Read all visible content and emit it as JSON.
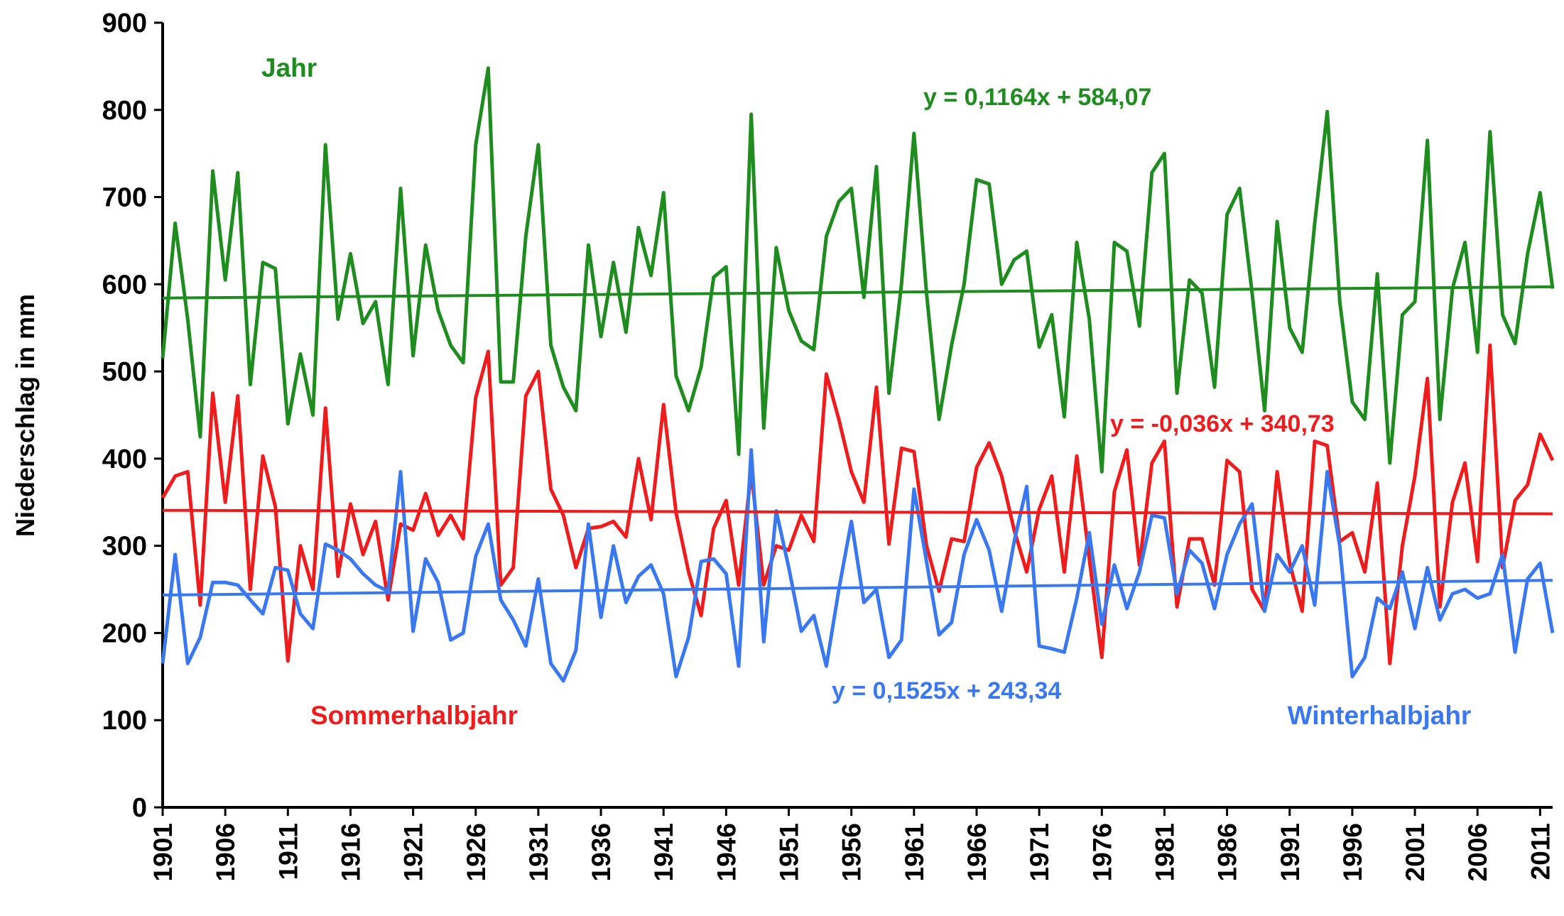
{
  "chart_data": {
    "type": "line",
    "y_label": "Niederschlag in mm",
    "x": [
      1901,
      1902,
      1903,
      1904,
      1905,
      1906,
      1907,
      1908,
      1909,
      1910,
      1911,
      1912,
      1913,
      1914,
      1915,
      1916,
      1917,
      1918,
      1919,
      1920,
      1921,
      1922,
      1923,
      1924,
      1925,
      1926,
      1927,
      1928,
      1929,
      1930,
      1931,
      1932,
      1933,
      1934,
      1935,
      1936,
      1937,
      1938,
      1939,
      1940,
      1941,
      1942,
      1943,
      1944,
      1945,
      1946,
      1947,
      1948,
      1949,
      1950,
      1951,
      1952,
      1953,
      1954,
      1955,
      1956,
      1957,
      1958,
      1959,
      1960,
      1961,
      1962,
      1963,
      1964,
      1965,
      1966,
      1967,
      1968,
      1969,
      1970,
      1971,
      1972,
      1973,
      1974,
      1975,
      1976,
      1977,
      1978,
      1979,
      1980,
      1981,
      1982,
      1983,
      1984,
      1985,
      1986,
      1987,
      1988,
      1989,
      1990,
      1991,
      1992,
      1993,
      1994,
      1995,
      1996,
      1997,
      1998,
      1999,
      2000,
      2001,
      2002,
      2003,
      2004,
      2005,
      2006,
      2007,
      2008,
      2009,
      2010,
      2011,
      2012
    ],
    "xlim": [
      1901,
      2012
    ],
    "xticks": [
      1901,
      1906,
      1911,
      1916,
      1921,
      1926,
      1931,
      1936,
      1941,
      1946,
      1951,
      1956,
      1961,
      1966,
      1971,
      1976,
      1981,
      1986,
      1991,
      1996,
      2001,
      2006,
      2011
    ],
    "ylim": [
      0,
      900
    ],
    "yticks": [
      0,
      100,
      200,
      300,
      400,
      500,
      600,
      700,
      800,
      900
    ],
    "series": [
      {
        "name": "Jahr",
        "color": "#1e8c1e",
        "trend": {
          "label": "y = 0,1164x + 584,07",
          "slope": 0.1164,
          "intercept": 584.07
        },
        "values": [
          515,
          670,
          560,
          425,
          730,
          605,
          728,
          485,
          625,
          618,
          440,
          520,
          450,
          760,
          560,
          635,
          555,
          580,
          485,
          710,
          518,
          645,
          570,
          530,
          510,
          760,
          848,
          488,
          488,
          655,
          760,
          530,
          482,
          455,
          645,
          540,
          625,
          545,
          665,
          610,
          705,
          495,
          455,
          505,
          608,
          620,
          405,
          795,
          435,
          642,
          570,
          535,
          525,
          655,
          695,
          710,
          585,
          735,
          475,
          600,
          773,
          590,
          445,
          530,
          600,
          720,
          715,
          600,
          628,
          638,
          528,
          565,
          448,
          648,
          560,
          385,
          648,
          638,
          552,
          728,
          750,
          475,
          605,
          590,
          482,
          680,
          710,
          590,
          455,
          672,
          550,
          522,
          670,
          798,
          580,
          465,
          445,
          612,
          395,
          565,
          580,
          765,
          445,
          595,
          648,
          522,
          775,
          565,
          532,
          635,
          705,
          595
        ]
      },
      {
        "name": "Sommerhalbjahr",
        "color": "#ee1c1c",
        "trend": {
          "label": "y = -0,036x + 340,73",
          "slope": -0.036,
          "intercept": 340.73
        },
        "values": [
          355,
          380,
          385,
          232,
          475,
          350,
          472,
          250,
          403,
          345,
          168,
          300,
          250,
          458,
          265,
          348,
          290,
          328,
          238,
          325,
          318,
          360,
          312,
          335,
          308,
          470,
          523,
          255,
          275,
          472,
          500,
          365,
          335,
          275,
          320,
          322,
          328,
          310,
          400,
          330,
          462,
          338,
          270,
          220,
          320,
          352,
          255,
          385,
          255,
          300,
          295,
          335,
          305,
          497,
          445,
          385,
          350,
          482,
          302,
          412,
          408,
          300,
          248,
          308,
          305,
          390,
          418,
          380,
          318,
          270,
          342,
          380,
          270,
          403,
          285,
          172,
          362,
          410,
          278,
          395,
          420,
          230,
          308,
          308,
          255,
          398,
          385,
          250,
          225,
          385,
          280,
          225,
          420,
          415,
          305,
          315,
          270,
          372,
          165,
          300,
          380,
          492,
          230,
          350,
          395,
          282,
          530,
          275,
          352,
          370,
          428,
          398
        ]
      },
      {
        "name": "Winterhalbjahr",
        "color": "#3a78f0",
        "trend": {
          "label": "y = 0,1525x + 243,34",
          "slope": 0.1525,
          "intercept": 243.34
        },
        "values": [
          165,
          290,
          165,
          195,
          258,
          258,
          255,
          238,
          222,
          275,
          272,
          222,
          205,
          302,
          295,
          285,
          268,
          255,
          248,
          385,
          202,
          285,
          258,
          192,
          200,
          288,
          325,
          238,
          215,
          185,
          262,
          165,
          145,
          180,
          325,
          218,
          300,
          235,
          265,
          278,
          245,
          150,
          195,
          282,
          285,
          268,
          162,
          410,
          190,
          340,
          275,
          202,
          220,
          162,
          250,
          328,
          235,
          250,
          172,
          192,
          365,
          282,
          198,
          212,
          290,
          330,
          295,
          225,
          305,
          368,
          185,
          182,
          178,
          240,
          315,
          210,
          278,
          228,
          270,
          335,
          332,
          245,
          295,
          280,
          228,
          290,
          325,
          348,
          225,
          290,
          270,
          300,
          232,
          385,
          300,
          150,
          172,
          240,
          228,
          270,
          205,
          275,
          215,
          245,
          250,
          240,
          245,
          290,
          178,
          262,
          280,
          200
        ]
      }
    ]
  }
}
